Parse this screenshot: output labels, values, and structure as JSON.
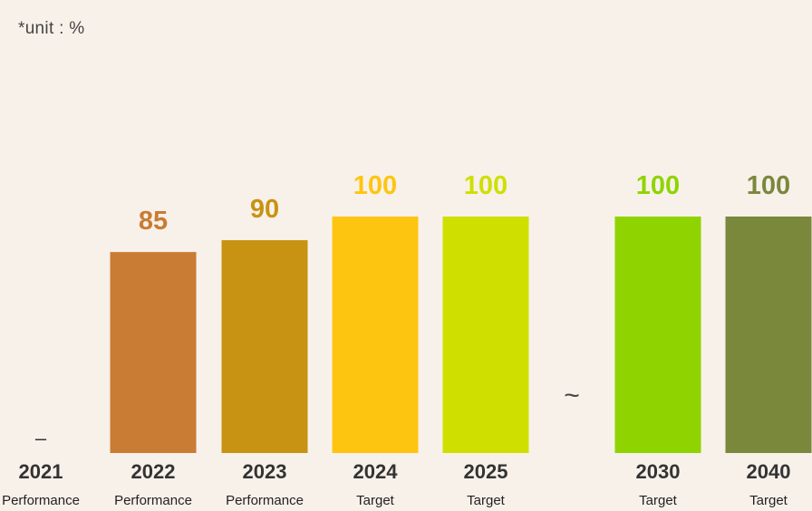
{
  "unit_note": "*unit : %",
  "chart_data": {
    "type": "bar",
    "categories": [
      "2021",
      "2022",
      "2023",
      "2024",
      "2025",
      "2030",
      "2040"
    ],
    "sublabels": [
      "Performance",
      "Performance",
      "Performance",
      "Target",
      "Target",
      "Target",
      "Target"
    ],
    "values": [
      null,
      85,
      90,
      100,
      100,
      100,
      100
    ],
    "value_labels": [
      "–",
      "85",
      "90",
      "100",
      "100",
      "100",
      "100"
    ],
    "colors": [
      "#c97c33",
      "#c97c33",
      "#c89312",
      "#fec510",
      "#cfdf00",
      "#8fd400",
      "#7a883c"
    ],
    "axis_break_symbol": "~",
    "ylim": [
      0,
      100
    ]
  }
}
